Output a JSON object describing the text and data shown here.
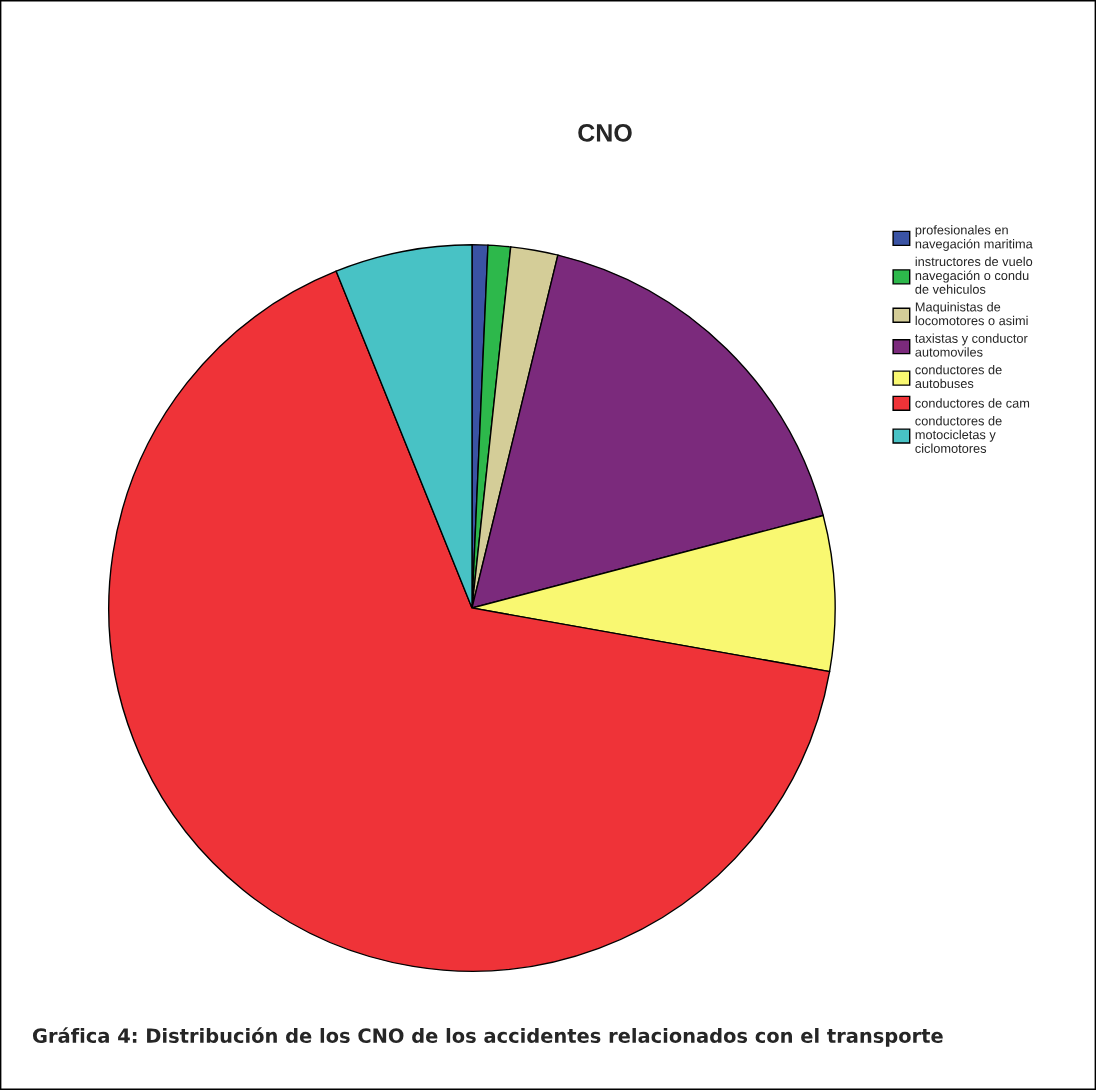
{
  "chart_data": {
    "type": "pie",
    "title": "CNO",
    "categories": [
      "profesionales en\nnavegación maritima",
      "instructores de vuelo\nnavegación o condu\nde vehiculos",
      "Maquinistas de\nlocomotores o asimi",
      "taxistas y conductor\nautomoviles",
      "conductores de\nautobuses",
      "conductores de cam",
      "conductores de\nmotocicletas y\nciclomotores"
    ],
    "values": [
      0.7,
      1.0,
      2.1,
      17.1,
      6.9,
      66.1,
      6.1
    ],
    "colors": [
      "#3a53a4",
      "#2db84b",
      "#d4cd98",
      "#7b2a7c",
      "#f9f871",
      "#ef3338",
      "#48c2c5"
    ],
    "legend": "right",
    "annotations": [
      "Gráfica 4: Distribución de los CNO de los accidentes relacionados con el transporte"
    ]
  }
}
